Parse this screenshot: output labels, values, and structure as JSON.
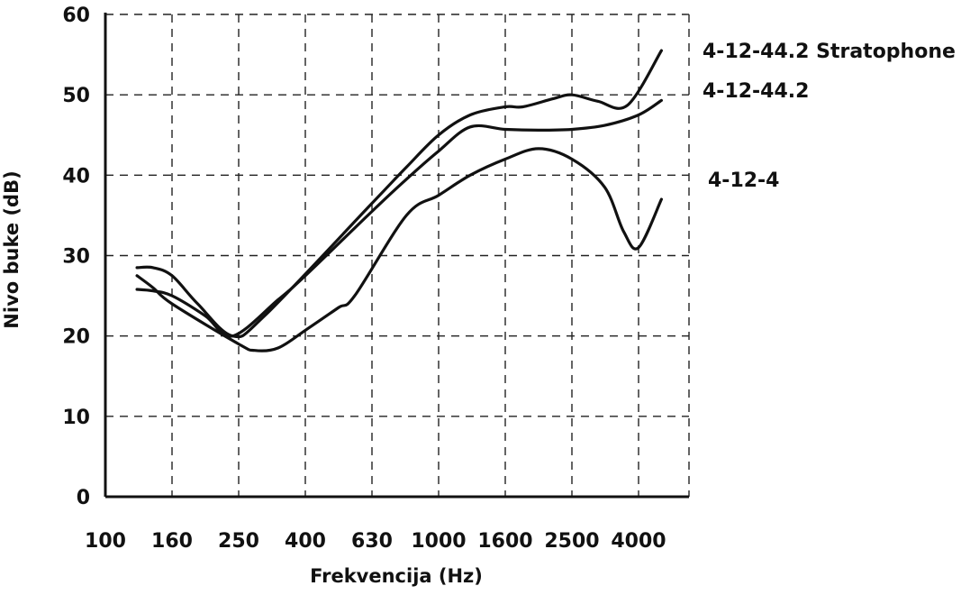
{
  "chart_data": {
    "type": "line",
    "title": "",
    "xlabel": "Frekvencija (Hz)",
    "ylabel": "Nivo buke (dB)",
    "x_categories": [
      "100",
      "160",
      "250",
      "400",
      "630",
      "1000",
      "1600",
      "2500",
      "4000"
    ],
    "x_scale": "log-spaced categories",
    "ylim": [
      0,
      60
    ],
    "yticks": [
      0,
      10,
      20,
      30,
      40,
      50,
      60
    ],
    "grid": true,
    "series": [
      {
        "name": "4-12-44.2 Stratophone",
        "points": [
          [
            125,
            28.5
          ],
          [
            140,
            28.5
          ],
          [
            160,
            27.5
          ],
          [
            190,
            24
          ],
          [
            240,
            20
          ],
          [
            300,
            22.5
          ],
          [
            630,
            36.5
          ],
          [
            800,
            41
          ],
          [
            1000,
            45
          ],
          [
            1250,
            47.5
          ],
          [
            1600,
            48.5
          ],
          [
            1800,
            48.5
          ],
          [
            2200,
            49.5
          ],
          [
            2500,
            50
          ],
          [
            3000,
            49.2
          ],
          [
            3700,
            48.7
          ],
          [
            4700,
            55.5
          ]
        ]
      },
      {
        "name": "4-12-44.2",
        "points": [
          [
            125,
            25.8
          ],
          [
            140,
            25.6
          ],
          [
            160,
            25
          ],
          [
            200,
            22.5
          ],
          [
            240,
            20
          ],
          [
            330,
            24.5
          ],
          [
            400,
            27.5
          ],
          [
            630,
            35.5
          ],
          [
            800,
            39.5
          ],
          [
            1000,
            43
          ],
          [
            1250,
            46
          ],
          [
            1600,
            45.7
          ],
          [
            2000,
            45.6
          ],
          [
            2500,
            45.7
          ],
          [
            3150,
            46.2
          ],
          [
            4000,
            47.5
          ],
          [
            4700,
            49.3
          ]
        ]
      },
      {
        "name": "4-12-4",
        "points": [
          [
            125,
            27.5
          ],
          [
            140,
            26
          ],
          [
            160,
            24
          ],
          [
            250,
            19
          ],
          [
            280,
            18.2
          ],
          [
            330,
            18.5
          ],
          [
            400,
            20.7
          ],
          [
            500,
            23.5
          ],
          [
            560,
            25
          ],
          [
            800,
            35
          ],
          [
            1000,
            37.5
          ],
          [
            1250,
            40
          ],
          [
            1600,
            42
          ],
          [
            2000,
            43.3
          ],
          [
            2500,
            42
          ],
          [
            3150,
            38.5
          ],
          [
            3600,
            33
          ],
          [
            4000,
            31
          ],
          [
            4700,
            37
          ]
        ]
      }
    ]
  }
}
